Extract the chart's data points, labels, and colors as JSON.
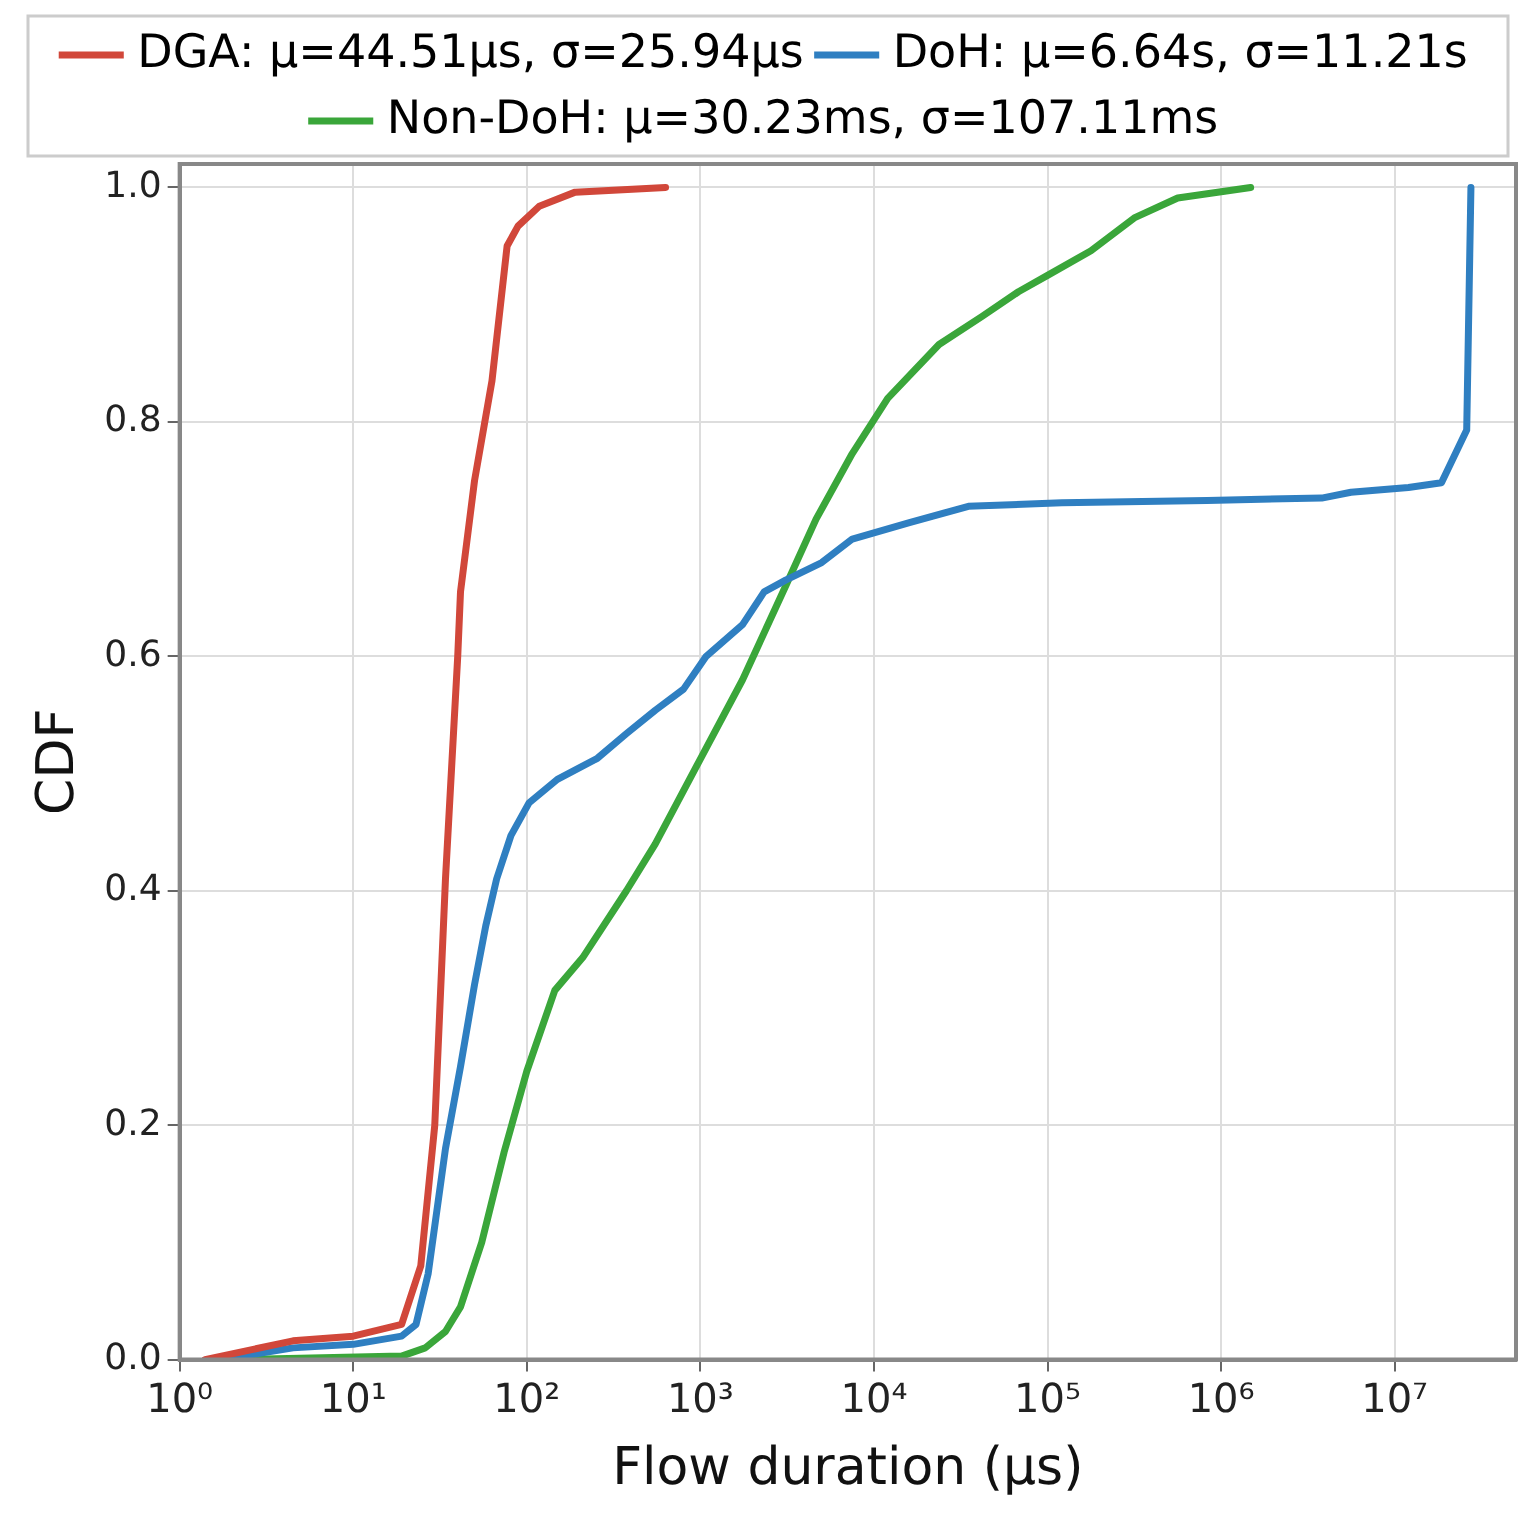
{
  "chart_data": {
    "type": "line",
    "xlabel": "Flow duration (μs)",
    "ylabel": "CDF",
    "log": "x",
    "grid": true,
    "legend": "top",
    "marker": "none",
    "line_style": "solid",
    "xlim": [
      1,
      50000000
    ],
    "ylim": [
      0,
      1.02
    ],
    "xticks": [
      {
        "value": 1,
        "label": "10⁰"
      },
      {
        "value": 10,
        "label": "10¹"
      },
      {
        "value": 100,
        "label": "10²"
      },
      {
        "value": 1000,
        "label": "10³"
      },
      {
        "value": 10000,
        "label": "10⁴"
      },
      {
        "value": 100000,
        "label": "10⁵"
      },
      {
        "value": 1000000,
        "label": "10⁶"
      },
      {
        "value": 10000000,
        "label": "10⁷"
      }
    ],
    "yticks": [
      {
        "value": 0,
        "label": "0.0"
      },
      {
        "value": 0.2,
        "label": "0.2"
      },
      {
        "value": 0.4,
        "label": "0.4"
      },
      {
        "value": 0.6,
        "label": "0.6"
      },
      {
        "value": 0.8,
        "label": "0.8"
      },
      {
        "value": 1,
        "label": "1.0"
      }
    ],
    "series": [
      {
        "name": "DGA: μ=44.51μs, σ=25.94μs",
        "color": "#d1473a",
        "x": [
          1.4,
          4.5,
          10,
          19,
          24.5,
          29.5,
          34,
          40,
          41.5,
          50,
          63,
          77,
          89,
          118,
          190,
          630
        ],
        "values": [
          0,
          0.016,
          0.02,
          0.03,
          0.08,
          0.2,
          0.41,
          0.6,
          0.655,
          0.75,
          0.835,
          0.95,
          0.967,
          0.984,
          0.996,
          1.0
        ]
      },
      {
        "name": "DoH: μ=6.64s, σ=11.21s",
        "color": "#2f7fc1",
        "x": [
          1.7,
          4.5,
          10,
          19,
          23,
          27,
          34,
          41.5,
          50,
          58,
          67,
          81,
          103,
          150,
          255,
          375,
          550,
          800,
          1080,
          1750,
          2330,
          3100,
          5000,
          7500,
          16000,
          35000,
          121000,
          830000,
          3800000,
          5600000,
          12000000,
          18600000,
          26000000,
          27500000
        ],
        "values": [
          0,
          0.01,
          0.013,
          0.02,
          0.03,
          0.073,
          0.18,
          0.25,
          0.32,
          0.37,
          0.41,
          0.447,
          0.475,
          0.495,
          0.513,
          0.534,
          0.554,
          0.572,
          0.6,
          0.627,
          0.655,
          0.665,
          0.68,
          0.7,
          0.714,
          0.728,
          0.731,
          0.733,
          0.735,
          0.74,
          0.744,
          0.748,
          0.793,
          1.0
        ]
      },
      {
        "name": "Non-DoH: μ=30.23ms, σ=107.11ms",
        "color": "#3aa63a",
        "x": [
          2.1,
          19,
          26,
          34,
          41.5,
          55,
          74,
          100,
          145,
          210,
          375,
          550,
          980,
          1750,
          3100,
          4640,
          7500,
          12000,
          23700,
          42000,
          68000,
          100000,
          178000,
          316000,
          562000,
          1480000
        ],
        "values": [
          0,
          0.003,
          0.01,
          0.024,
          0.045,
          0.1,
          0.177,
          0.246,
          0.315,
          0.343,
          0.4,
          0.44,
          0.51,
          0.58,
          0.66,
          0.717,
          0.773,
          0.82,
          0.866,
          0.89,
          0.911,
          0.925,
          0.946,
          0.974,
          0.991,
          1.0
        ]
      }
    ]
  }
}
